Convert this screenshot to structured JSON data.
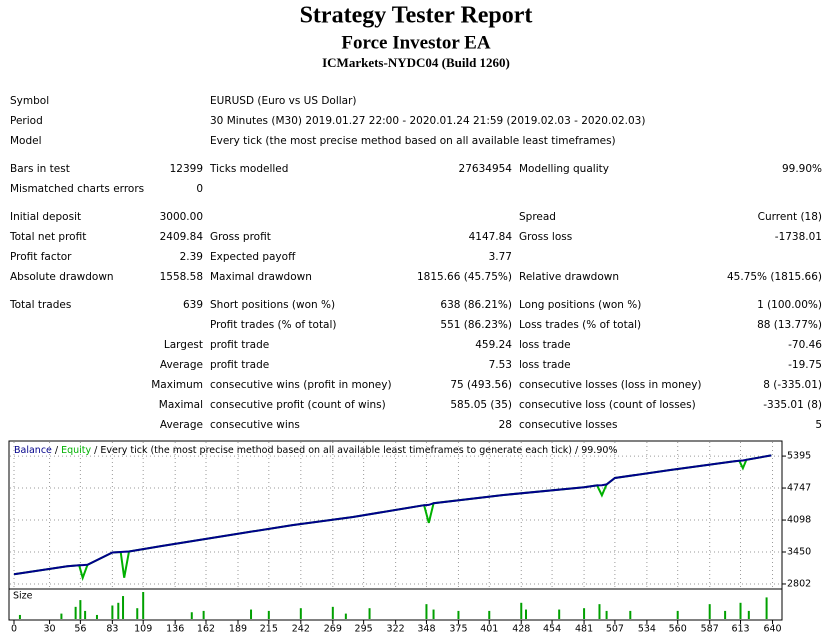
{
  "header": {
    "title": "Strategy Tester Report",
    "subtitle": "Force Investor EA",
    "server": "ICMarkets-NYDC04 (Build 1260)"
  },
  "report": {
    "sections": [
      [
        [
          "Symbol",
          "EURUSD (Euro vs US Dollar)"
        ],
        [
          "Period",
          "30 Minutes (M30) 2019.01.27 22:00 - 2020.01.24 21:59 (2019.02.03 - 2020.02.03)"
        ],
        [
          "Model",
          "Every tick (the most precise method based on all available least timeframes)"
        ]
      ],
      [
        [
          "Bars in test",
          "12399",
          "Ticks modelled",
          "27634954",
          "Modelling quality",
          "99.90%"
        ],
        [
          "Mismatched charts errors",
          "0",
          null,
          null,
          null,
          null
        ]
      ],
      [
        [
          "Initial deposit",
          "3000.00",
          null,
          null,
          "Spread",
          "Current (18)"
        ],
        [
          "Total net profit",
          "2409.84",
          "Gross profit",
          "4147.84",
          "Gross loss",
          "-1738.01"
        ],
        [
          "Profit factor",
          "2.39",
          "Expected payoff",
          "3.77",
          null,
          null
        ],
        [
          "Absolute drawdown",
          "1558.58",
          "Maximal drawdown",
          "1815.66 (45.75%)",
          "Relative drawdown",
          "45.75% (1815.66)"
        ]
      ],
      [
        [
          "Total trades",
          "639",
          "Short positions (won %)",
          "638 (86.21%)",
          "Long positions (won %)",
          "1 (100.00%)"
        ],
        [
          null,
          null,
          "Profit trades (% of total)",
          "551 (86.23%)",
          "Loss trades (% of total)",
          "88 (13.77%)"
        ],
        [
          null,
          "Largest",
          "profit trade",
          "459.24",
          "loss trade",
          "-70.46"
        ],
        [
          null,
          "Average",
          "profit trade",
          "7.53",
          "loss trade",
          "-19.75"
        ],
        [
          null,
          "Maximum",
          "consecutive wins (profit in money)",
          "75 (493.56)",
          "consecutive losses (loss in money)",
          "8 (-335.01)"
        ],
        [
          null,
          "Maximal",
          "consecutive profit (count of wins)",
          "585.05 (35)",
          "consecutive loss (count of losses)",
          "-335.01 (8)"
        ],
        [
          null,
          "Average",
          "consecutive wins",
          "28",
          "consecutive losses",
          "5"
        ]
      ]
    ]
  },
  "chart_data": {
    "type": "line",
    "separator": "/",
    "model_note": "Every tick (the most precise method based on all available least timeframes to generate each tick)",
    "quality": "99.90%",
    "x": [
      0,
      45,
      55,
      58,
      62,
      83,
      90,
      93,
      97,
      124,
      193,
      235,
      286,
      346,
      350,
      354,
      413,
      481,
      492,
      496,
      500,
      507,
      553,
      608,
      612,
      615,
      618,
      639
    ],
    "series": [
      {
        "name": "Balance",
        "color": "#00008b",
        "values": [
          3000,
          3160,
          3180,
          3185,
          3190,
          3440,
          3450,
          3455,
          3460,
          3570,
          3835,
          3995,
          4160,
          4400,
          4405,
          4440,
          4605,
          4765,
          4800,
          4805,
          4820,
          4950,
          5110,
          5290,
          5300,
          5305,
          5320,
          5409.84
        ]
      },
      {
        "name": "Equity",
        "color": "#00b000",
        "values": [
          3000,
          3160,
          3180,
          2925,
          3190,
          3440,
          3450,
          2930,
          3460,
          3570,
          3835,
          3995,
          4160,
          4400,
          4040,
          4440,
          4605,
          4765,
          4800,
          4600,
          4820,
          4950,
          5110,
          5290,
          5300,
          5150,
          5320,
          5409.84
        ]
      }
    ],
    "xlim": [
      0,
      648
    ],
    "ylim": [
      2700,
      5640
    ],
    "xticks": [
      0,
      30,
      56,
      83,
      109,
      136,
      162,
      189,
      215,
      242,
      269,
      295,
      322,
      348,
      375,
      401,
      428,
      454,
      481,
      507,
      534,
      560,
      587,
      613,
      640
    ],
    "yticks": [
      5395,
      4747,
      4098,
      3450,
      2802
    ],
    "grid": true,
    "size": {
      "label": "Size",
      "color": "#00a000",
      "ylim": [
        0,
        1
      ],
      "x": [
        5,
        40,
        52,
        56,
        60,
        70,
        83,
        88,
        92,
        104,
        109,
        150,
        160,
        200,
        215,
        242,
        269,
        280,
        300,
        348,
        354,
        375,
        401,
        428,
        432,
        460,
        481,
        494,
        500,
        520,
        560,
        587,
        600,
        613,
        620,
        635
      ],
      "values": [
        0.15,
        0.2,
        0.45,
        0.7,
        0.3,
        0.15,
        0.5,
        0.6,
        0.85,
        0.4,
        1.0,
        0.25,
        0.3,
        0.35,
        0.3,
        0.4,
        0.45,
        0.2,
        0.4,
        0.55,
        0.35,
        0.3,
        0.3,
        0.6,
        0.35,
        0.35,
        0.4,
        0.55,
        0.3,
        0.3,
        0.3,
        0.55,
        0.3,
        0.6,
        0.3,
        0.8
      ]
    }
  }
}
